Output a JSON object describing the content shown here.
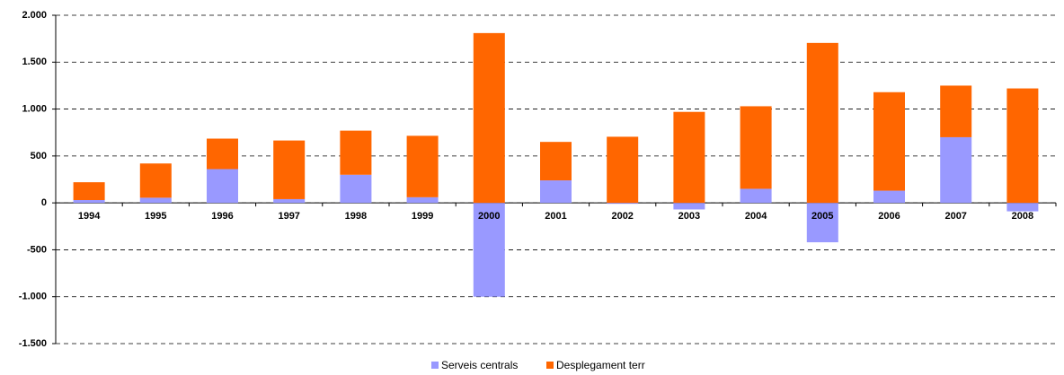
{
  "chart_data": {
    "type": "stacked_bar",
    "categories": [
      "1994",
      "1995",
      "1996",
      "1997",
      "1998",
      "1999",
      "2000",
      "2001",
      "2002",
      "2003",
      "2004",
      "2005",
      "2006",
      "2007",
      "2008"
    ],
    "series": [
      {
        "name": "Serveis centrals",
        "color": "#9999ff",
        "values": [
          30,
          55,
          360,
          40,
          300,
          60,
          -1000,
          240,
          -10,
          -70,
          150,
          -420,
          130,
          700,
          -90
        ]
      },
      {
        "name": "Desplegament terr",
        "color": "#ff6600",
        "values": [
          190,
          365,
          325,
          625,
          470,
          655,
          1810,
          410,
          705,
          970,
          880,
          1705,
          1050,
          550,
          1220
        ]
      }
    ],
    "ylim": [
      -1500,
      2000
    ],
    "yticks": [
      {
        "value": -1500,
        "label": "-1.500"
      },
      {
        "value": -1000,
        "label": "-1.000"
      },
      -500,
      0,
      500,
      {
        "value": 1000,
        "label": "1.000"
      },
      {
        "value": 1500,
        "label": "1.500"
      },
      {
        "value": 2000,
        "label": "2.000"
      }
    ],
    "grid": true,
    "legend": "bottom"
  }
}
